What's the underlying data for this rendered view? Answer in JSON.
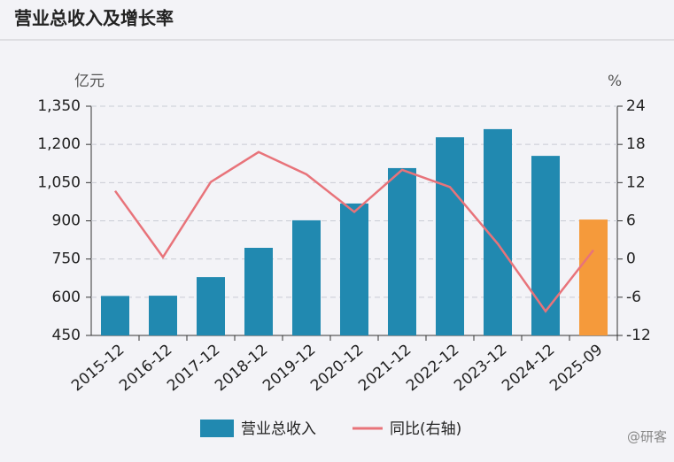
{
  "chart_data": {
    "type": "bar_line",
    "title": "营业总收入及增长率",
    "y_unit": "亿元",
    "y2_unit": "%",
    "categories": [
      "2015-12",
      "2016-12",
      "2017-12",
      "2018-12",
      "2019-12",
      "2020-12",
      "2021-12",
      "2022-12",
      "2023-12",
      "2024-12",
      "2025-09"
    ],
    "series": [
      {
        "name": "营业总收入",
        "type": "bar",
        "color": "#2189b0",
        "colors": [
          "#2189b0",
          "#2189b0",
          "#2189b0",
          "#2189b0",
          "#2189b0",
          "#2189b0",
          "#2189b0",
          "#2189b0",
          "#2189b0",
          "#2189b0",
          "#f59a3b"
        ],
        "values": [
          605,
          606,
          679,
          794,
          902,
          968,
          1107,
          1228,
          1260,
          1155,
          905
        ]
      },
      {
        "name": "同比(右轴)",
        "type": "line",
        "color": "#e8737a",
        "axis": "y2",
        "values": [
          10.7,
          0.3,
          12.1,
          16.8,
          13.3,
          7.4,
          14.0,
          11.3,
          2.4,
          -8.2,
          1.4
        ]
      }
    ],
    "ylim": [
      450,
      1350
    ],
    "yticks": [
      450,
      600,
      750,
      900,
      {
        "value": 1050,
        "label": "1,050"
      },
      {
        "value": 1200,
        "label": "1,200"
      },
      {
        "value": 1350,
        "label": "1,350"
      }
    ],
    "y2lim": [
      -12,
      24
    ],
    "y2ticks": [
      -12,
      -6,
      0,
      6,
      12,
      18,
      24
    ],
    "grid": true,
    "watermark": "@研客"
  }
}
